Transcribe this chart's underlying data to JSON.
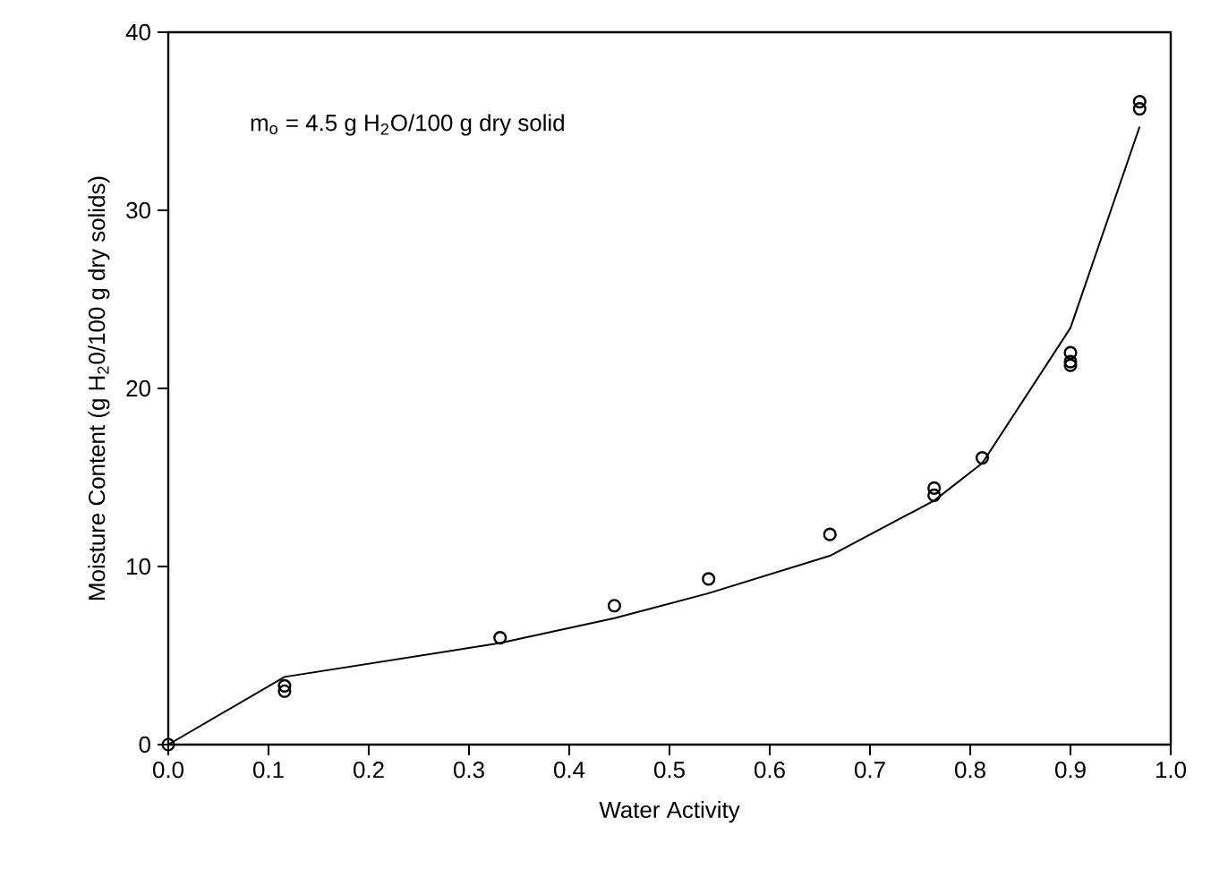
{
  "chart_data": {
    "type": "scatter",
    "xlabel": "Water Activity",
    "ylabel": "Moisture Content (g H$_{2}$0/100 g dry solids)",
    "annotations": [
      "m$_{o}$ = 4.5 g H$_{2}$O/100 g dry solid"
    ],
    "xlim": [
      0,
      1
    ],
    "xticks": [
      {
        "value": 0,
        "label": "0.0"
      },
      {
        "value": 0.1,
        "label": "0.1"
      },
      {
        "value": 0.2,
        "label": "0.2"
      },
      {
        "value": 0.3,
        "label": "0.3"
      },
      {
        "value": 0.4,
        "label": "0.4"
      },
      {
        "value": 0.5,
        "label": "0.5"
      },
      {
        "value": 0.6,
        "label": "0.6"
      },
      {
        "value": 0.7,
        "label": "0.7"
      },
      {
        "value": 0.8,
        "label": "0.8"
      },
      {
        "value": 0.9,
        "label": "0.9"
      },
      {
        "value": 1,
        "label": "1.0"
      }
    ],
    "ylim": [
      0,
      40
    ],
    "yticks": [
      0,
      10,
      20,
      30,
      40
    ],
    "grid": false,
    "series": [
      {
        "color": "#000000",
        "marker": "circle",
        "x": [
          0,
          0.116,
          0.116,
          0.331,
          0.445,
          0.539,
          0.66,
          0.764,
          0.764,
          0.812,
          0.9,
          0.9,
          0.9,
          0.969,
          0.969
        ],
        "values": [
          0,
          3.0,
          3.3,
          6.0,
          7.8,
          9.3,
          11.8,
          14.0,
          14.4,
          16.1,
          22.0,
          21.5,
          21.3,
          36.1,
          35.7
        ]
      },
      {
        "type": "line",
        "color": "#000000",
        "marker": "none",
        "x": [
          0,
          0.116,
          0.331,
          0.445,
          0.539,
          0.66,
          0.764,
          0.812,
          0.9,
          0.969
        ],
        "values": [
          0,
          3.8,
          5.7,
          7.1,
          8.5,
          10.6,
          13.7,
          15.8,
          23.4,
          34.7
        ]
      }
    ]
  }
}
